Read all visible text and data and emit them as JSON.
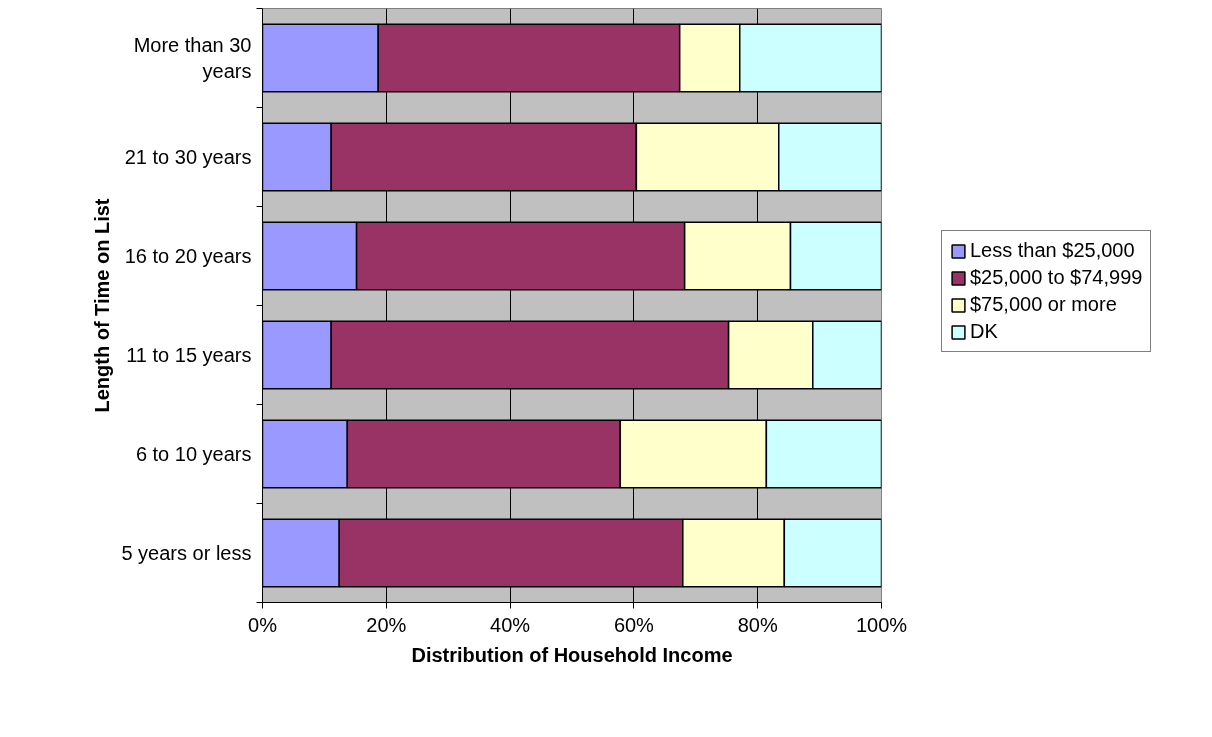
{
  "chart_data": {
    "type": "bar",
    "orientation": "horizontal",
    "stacked": true,
    "xlabel": "Distribution of Household Income",
    "ylabel": "Length of Time on List",
    "categories": [
      "More than 30 years",
      "21 to 30 years",
      "16 to 20 years",
      "11 to 15 years",
      "6 to 10 years",
      "5 years or less"
    ],
    "series": [
      {
        "name": "Less than $25,000",
        "color": "#9999ff",
        "values": [
          18.7,
          11.1,
          15.2,
          11.1,
          13.7,
          12.4
        ]
      },
      {
        "name": "$25,000 to $74,999",
        "color": "#993366",
        "values": [
          48.7,
          49.3,
          53.0,
          64.2,
          44.1,
          55.5
        ]
      },
      {
        "name": "$75,000 or more",
        "color": "#ffffcc",
        "values": [
          9.7,
          23.0,
          17.1,
          13.6,
          23.6,
          16.4
        ]
      },
      {
        "name": "DK",
        "color": "#ccffff",
        "values": [
          22.9,
          16.6,
          14.7,
          11.1,
          18.6,
          15.7
        ]
      }
    ],
    "xlim": [
      0,
      100
    ],
    "xticks": [
      {
        "value": 0,
        "label": "0%"
      },
      {
        "value": 20,
        "label": "20%"
      },
      {
        "value": 40,
        "label": "40%"
      },
      {
        "value": 60,
        "label": "60%"
      },
      {
        "value": 80,
        "label": "80%"
      },
      {
        "value": 100,
        "label": "100%"
      }
    ],
    "grid": "x",
    "legend": "right"
  }
}
